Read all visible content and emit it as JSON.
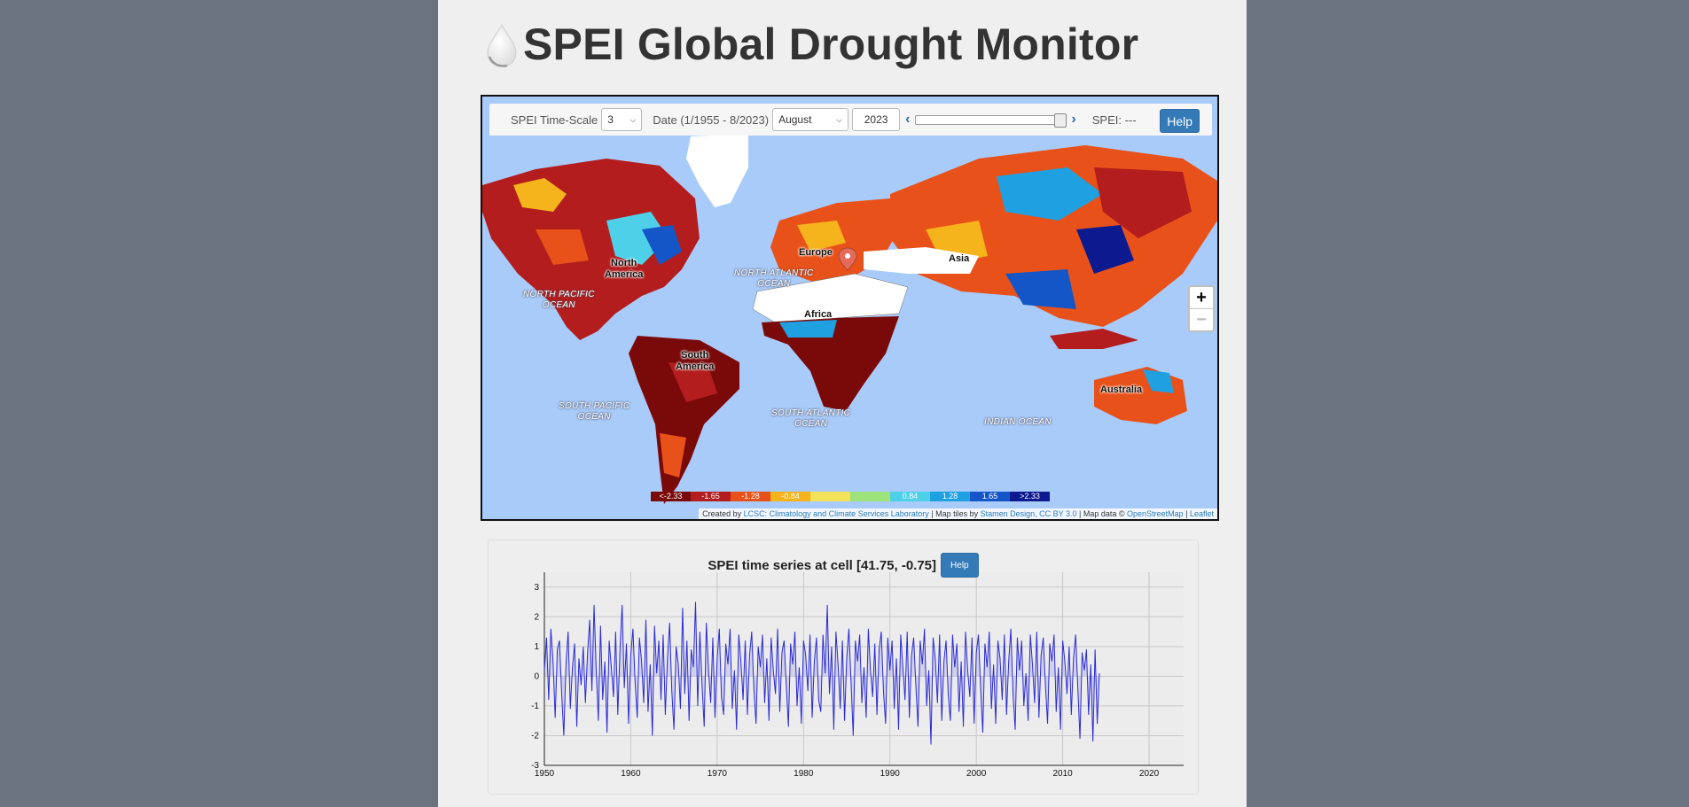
{
  "header": {
    "title": "SPEI Global Drought Monitor",
    "logo_icon": "water-drop-icon"
  },
  "controls": {
    "timescale_label": "SPEI Time-Scale",
    "timescale_value": "3",
    "date_label": "Date (1/1955 - 8/2023)",
    "month_value": "August",
    "year_value": "2023",
    "prev_icon": "chevron-left-icon",
    "next_icon": "chevron-right-icon",
    "spei_readout": "SPEI: ---",
    "help_label": "Help",
    "slider_fraction": 1.0
  },
  "map": {
    "zoom_in": "+",
    "zoom_out": "−",
    "marker_icon": "map-pin-icon",
    "continents": [
      {
        "key": "na",
        "text": "North\nAmerica"
      },
      {
        "key": "sa",
        "text": "South\nAmerica"
      },
      {
        "key": "eu",
        "text": "Europe"
      },
      {
        "key": "af",
        "text": "Africa"
      },
      {
        "key": "as",
        "text": "Asia"
      },
      {
        "key": "au",
        "text": "Australia"
      }
    ],
    "oceans": [
      {
        "key": "npac",
        "text": "NORTH PACIFIC\nOCEAN"
      },
      {
        "key": "natl",
        "text": "NORTH ATLANTIC\nOCEAN"
      },
      {
        "key": "spac",
        "text": "SOUTH PACIFIC\nOCEAN"
      },
      {
        "key": "satl",
        "text": "SOUTH ATLANTIC\nOCEAN"
      },
      {
        "key": "ind",
        "text": "INDIAN OCEAN"
      }
    ],
    "legend": [
      {
        "label": "<-2.33",
        "color": "#7a0a0a"
      },
      {
        "label": "-1.65",
        "color": "#b31d1d"
      },
      {
        "label": "-1.28",
        "color": "#e8521a"
      },
      {
        "label": "-0.84",
        "color": "#f5b31c"
      },
      {
        "label": "",
        "color": "#f2e35a"
      },
      {
        "label": "",
        "color": "#9de27a"
      },
      {
        "label": "0.84",
        "color": "#4dd0e8"
      },
      {
        "label": "1.28",
        "color": "#1fa0e0"
      },
      {
        "label": "1.65",
        "color": "#1456c8"
      },
      {
        "label": ">2.33",
        "color": "#0d1a8f"
      }
    ],
    "attribution": {
      "created_by": "Created by",
      "lcsc": "LCSC: Climatology and Climate Services Laboratory",
      "tiles": "| Map tiles by",
      "stamen": "Stamen Design, CC BY 3.0",
      "mapdata": "| Map data ©",
      "osm": "OpenStreetMap",
      "sep": "|",
      "leaflet": "Leaflet"
    },
    "colors": {
      "ocean": "#a9cbfa",
      "dry": "#b31d1d",
      "wet": "#1456c8",
      "ice": "#ffffff"
    }
  },
  "timeseries": {
    "title": "SPEI time series at cell [41.75, -0.75]",
    "help_label": "Help"
  },
  "chart_data": {
    "type": "line",
    "title": "SPEI time series at cell [41.75, -0.75]",
    "xlabel": "",
    "ylabel": "",
    "xlim": [
      1950,
      2024
    ],
    "ylim": [
      -3,
      3.5
    ],
    "xticks": [
      1950,
      1960,
      1970,
      1980,
      1990,
      2000,
      2010,
      2020
    ],
    "yticks": [
      -3,
      -2,
      -1,
      0,
      1,
      2,
      3
    ],
    "grid": true,
    "line_color": "#2b2bd6",
    "series": [
      {
        "name": "",
        "x_start": 1950.0,
        "x_step": 0.25,
        "values": [
          0.2,
          1.3,
          -0.8,
          1.6,
          0.5,
          -1.4,
          0.9,
          1.2,
          -0.6,
          -2.0,
          0.4,
          1.5,
          -1.1,
          0.3,
          1.1,
          -1.7,
          0.6,
          -0.3,
          1.0,
          -0.9,
          0.8,
          1.9,
          -0.5,
          2.4,
          0.2,
          -1.5,
          1.7,
          -0.8,
          0.5,
          -1.9,
          1.2,
          0.3,
          -0.7,
          1.5,
          -1.3,
          0.9,
          2.4,
          -0.4,
          1.1,
          -1.6,
          0.7,
          1.6,
          -0.2,
          -1.4,
          1.3,
          0.5,
          -0.9,
          1.9,
          -1.2,
          0.4,
          -2.0,
          1.7,
          0.1,
          1.2,
          -0.8,
          1.4,
          -1.3,
          0.6,
          1.8,
          -0.5,
          -1.8,
          1.0,
          0.4,
          -1.1,
          2.3,
          -0.6,
          1.2,
          -1.5,
          0.9,
          0.3,
          2.5,
          -1.0,
          1.5,
          -0.3,
          -1.7,
          1.8,
          0.2,
          -0.9,
          1.3,
          -1.4,
          0.6,
          1.6,
          -0.7,
          -1.3,
          1.1,
          0.4,
          1.6,
          -1.1,
          0.2,
          -1.8,
          1.4,
          0.5,
          -0.8,
          1.2,
          -1.3,
          0.7,
          1.5,
          -0.4,
          -1.6,
          1.0,
          0.3,
          1.4,
          -0.9,
          0.6,
          -1.5,
          1.3,
          0.2,
          -0.6,
          1.6,
          -1.2,
          0.8,
          1.2,
          -0.3,
          -1.7,
          1.1,
          0.4,
          1.5,
          -1.0,
          0.3,
          -1.6,
          1.2,
          0.7,
          -0.5,
          1.4,
          -1.4,
          0.5,
          1.3,
          -0.8,
          -1.2,
          1.4,
          0.1,
          2.4,
          -0.6,
          1.0,
          -1.8,
          1.5,
          0.4,
          -1.1,
          1.2,
          -1.5,
          0.6,
          1.6,
          -0.2,
          -2.0,
          1.2,
          0.5,
          1.4,
          -0.9,
          0.3,
          -1.4,
          1.6,
          0.2,
          -0.7,
          1.1,
          -1.3,
          0.9,
          1.5,
          -0.5,
          -1.6,
          1.3,
          0.2,
          1.2,
          -1.1,
          0.6,
          -1.8,
          1.4,
          0.3,
          -0.8,
          1.5,
          -1.4,
          0.7,
          1.3,
          -0.3,
          -1.7,
          1.2,
          0.4,
          1.6,
          -1.0,
          0.2,
          -2.3,
          1.3,
          0.6,
          -0.9,
          1.4,
          -1.5,
          0.5,
          1.2,
          -0.6,
          -1.5,
          1.4,
          0.3,
          1.1,
          -1.2,
          0.5,
          -1.7,
          1.5,
          0.2,
          -0.7,
          1.3,
          -1.6,
          0.8,
          1.4,
          -0.4,
          -1.9,
          1.1,
          0.3,
          1.5,
          -1.1,
          0.4,
          -1.6,
          1.2,
          0.6,
          -0.8,
          1.4,
          -1.3,
          0.5,
          1.6,
          -0.6,
          -1.8,
          1.3,
          0.2,
          1.2,
          -1.0,
          0.1,
          -1.5,
          1.4,
          0.4,
          -0.9,
          1.5,
          -1.4,
          0.7,
          1.3,
          -0.3,
          -1.6,
          1.1,
          0.5,
          1.4,
          -1.2,
          0.3,
          -1.8,
          1.2,
          0.5,
          -0.6,
          1.0,
          -1.3,
          0.6,
          1.4,
          -0.4,
          -2.1,
          0.8,
          0.2,
          0.9,
          -1.3,
          0.4,
          -2.2,
          0.9,
          -1.6,
          0.1
        ]
      }
    ]
  }
}
